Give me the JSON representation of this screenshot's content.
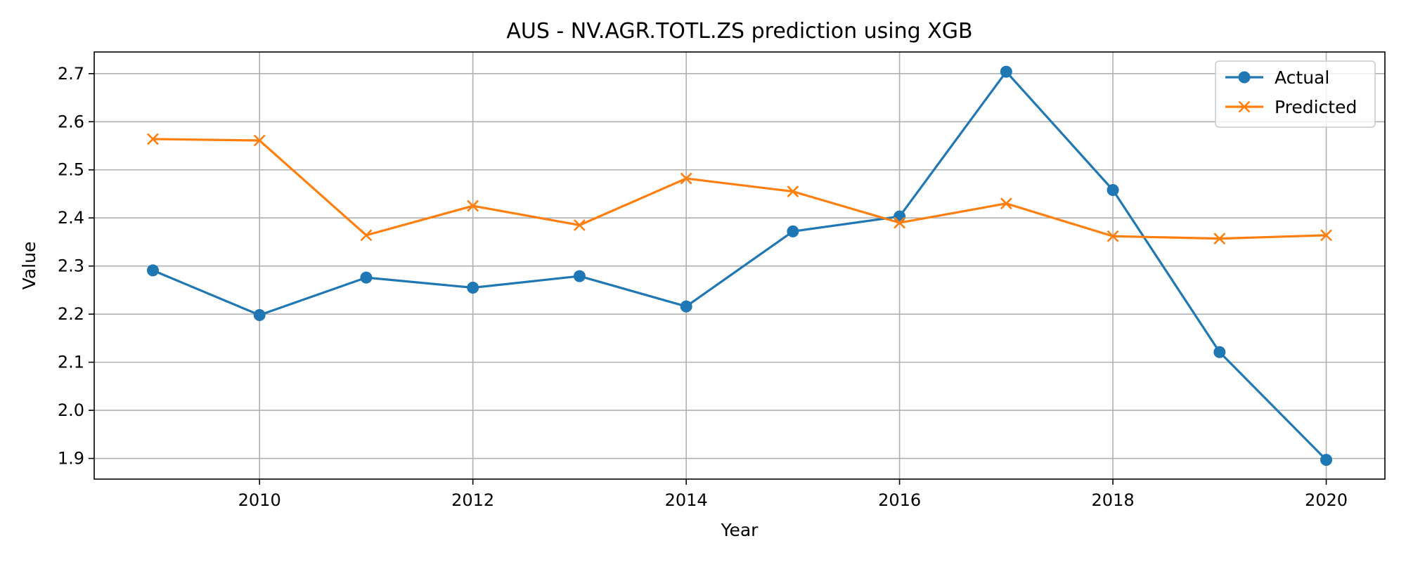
{
  "chart_data": {
    "type": "line",
    "title": "AUS - NV.AGR.TOTL.ZS prediction using XGB",
    "xlabel": "Year",
    "ylabel": "Value",
    "x": [
      2009,
      2010,
      2011,
      2012,
      2013,
      2014,
      2015,
      2016,
      2017,
      2018,
      2019,
      2020
    ],
    "xlim": [
      2008.45,
      2020.55
    ],
    "ylim": [
      1.857,
      2.745
    ],
    "xticks": [
      2010,
      2012,
      2014,
      2016,
      2018,
      2020
    ],
    "yticks": [
      1.9,
      2.0,
      2.1,
      2.2,
      2.3,
      2.4,
      2.5,
      2.6,
      2.7
    ],
    "grid": true,
    "legend_position": "top-right",
    "series": [
      {
        "name": "Actual",
        "color": "#1f77b4",
        "marker": "circle",
        "values": [
          2.291,
          2.198,
          2.276,
          2.255,
          2.279,
          2.216,
          2.372,
          2.403,
          2.704,
          2.458,
          2.121,
          1.897
        ]
      },
      {
        "name": "Predicted",
        "color": "#ff7f0e",
        "marker": "x",
        "values": [
          2.564,
          2.561,
          2.364,
          2.425,
          2.385,
          2.482,
          2.455,
          2.39,
          2.43,
          2.362,
          2.357,
          2.364
        ]
      }
    ]
  }
}
